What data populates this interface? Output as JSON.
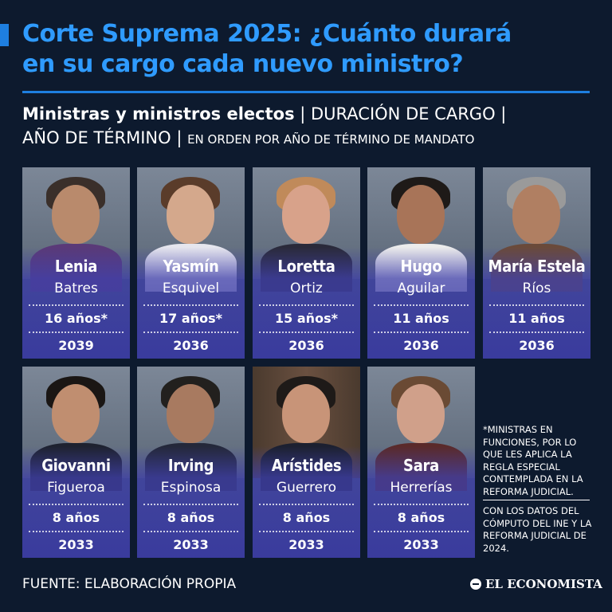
{
  "header": {
    "title_line1": "Corte Suprema 2025: ¿Cuánto durará",
    "title_line2": "en su cargo cada nuevo ministro?",
    "subtitle_bold": "Ministras y ministros electos",
    "subtitle_sep1": " | ",
    "subtitle_part2": "DURACIÓN DE CARGO",
    "subtitle_sep2": " |",
    "subtitle_part3": "AÑO DE TÉRMINO",
    "subtitle_sep3": " | ",
    "subtitle_part4": "EN ORDEN POR AÑO DE TÉRMINO DE MANDATO"
  },
  "ministers": [
    {
      "first": "Lenia",
      "last": "Batres",
      "duration": "16 años*",
      "end_year": "2039"
    },
    {
      "first": "Yasmín",
      "last": "Esquivel",
      "duration": "17 años*",
      "end_year": "2036"
    },
    {
      "first": "Loretta",
      "last": "Ortiz",
      "duration": "15 años*",
      "end_year": "2036"
    },
    {
      "first": "Hugo",
      "last": "Aguilar",
      "duration": "11 años",
      "end_year": "2036"
    },
    {
      "first": "María Estela",
      "last": "Ríos",
      "duration": "11 años",
      "end_year": "2036"
    },
    {
      "first": "Giovanni",
      "last": "Figueroa",
      "duration": "8 años",
      "end_year": "2033"
    },
    {
      "first": "Irving",
      "last": "Espinosa",
      "duration": "8 años",
      "end_year": "2033"
    },
    {
      "first": "Arístides",
      "last": "Guerrero",
      "duration": "8 años",
      "end_year": "2033"
    },
    {
      "first": "Sara",
      "last": "Herrerías",
      "duration": "8 años",
      "end_year": "2033"
    }
  ],
  "notes": {
    "note1": "*Ministras en funciones, por lo que les aplica la regla especial contemplada en la reforma judicial.",
    "note2": "Con los datos del cómputo del INE y la reforma judicial de 2024."
  },
  "footer": {
    "source": "FUENTE: ELABORACIÓN PROPIA",
    "brand": "EL ECONOMISTA"
  },
  "colors": {
    "background": "#0d1a2e",
    "title": "#2f9bff",
    "accent": "#1e7fe0",
    "card_overlay": "#3a3aa0"
  }
}
